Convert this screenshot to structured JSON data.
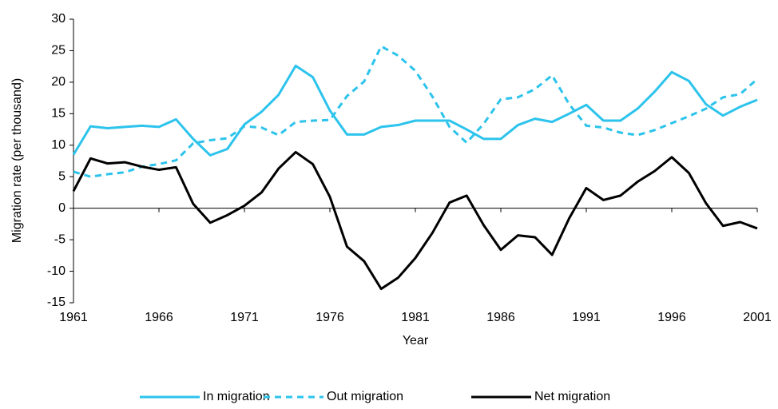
{
  "chart_data": {
    "type": "line",
    "x_label": "Year",
    "y_label": "Migration rate (per thousand)",
    "x": [
      1961,
      1962,
      1963,
      1964,
      1965,
      1966,
      1967,
      1968,
      1969,
      1970,
      1971,
      1972,
      1973,
      1974,
      1975,
      1976,
      1977,
      1978,
      1979,
      1980,
      1981,
      1982,
      1983,
      1984,
      1985,
      1986,
      1987,
      1988,
      1989,
      1990,
      1991,
      1992,
      1993,
      1994,
      1995,
      1996,
      1997,
      1998,
      1999,
      2000,
      2001
    ],
    "series": [
      {
        "name": "In migration",
        "color": "#2cc3ec",
        "line_style": "solid",
        "values": [
          8.5,
          13,
          12.7,
          12.9,
          13.1,
          12.9,
          14.1,
          11,
          8.4,
          9.4,
          13.3,
          15.3,
          18,
          22.6,
          20.8,
          15.5,
          11.7,
          11.7,
          12.9,
          13.2,
          13.9,
          13.9,
          13.9,
          12.5,
          11,
          11,
          13.2,
          14.2,
          13.7,
          15,
          16.4,
          13.9,
          13.9,
          15.8,
          18.5,
          21.6,
          20.2,
          16.5,
          14.7,
          16.1,
          17.2
        ]
      },
      {
        "name": "Out migration",
        "color": "#2cc3ec",
        "line_style": "dashed",
        "values": [
          5.8,
          5,
          5.4,
          5.7,
          6.6,
          7,
          7.6,
          10.3,
          10.8,
          11.1,
          13,
          12.8,
          11.6,
          13.7,
          13.9,
          14,
          17.8,
          20.1,
          25.7,
          24.2,
          21.8,
          17.7,
          12.9,
          10.4,
          13.4,
          17.3,
          17.6,
          18.9,
          21.1,
          16.5,
          13.1,
          12.8,
          12,
          11.6,
          12.4,
          13.5,
          14.6,
          15.8,
          17.6,
          18.1,
          20.5
        ]
      },
      {
        "name": "Net migration",
        "color": "#000000",
        "line_style": "solid",
        "values": [
          2.7,
          7.9,
          7.1,
          7.3,
          6.6,
          6.1,
          6.5,
          0.7,
          -2.3,
          -1.1,
          0.4,
          2.5,
          6.3,
          8.9,
          7,
          1.8,
          -6.1,
          -8.4,
          -12.8,
          -11,
          -7.9,
          -3.9,
          0.9,
          2,
          -2.7,
          -6.6,
          -4.3,
          -4.6,
          -7.4,
          -1.6,
          3.2,
          1.3,
          2,
          4.2,
          5.9,
          8.1,
          5.6,
          0.8,
          -2.8,
          -2.2,
          -3.2
        ]
      }
    ],
    "xlim": [
      1961,
      2001
    ],
    "xticks": [
      1961,
      1966,
      1971,
      1976,
      1981,
      1986,
      1991,
      1996,
      2001
    ],
    "ylim": [
      -15,
      30
    ],
    "yticks": [
      -15,
      -10,
      -5,
      0,
      5,
      10,
      15,
      20,
      25,
      30
    ],
    "grid": false,
    "legend": "bottom"
  }
}
